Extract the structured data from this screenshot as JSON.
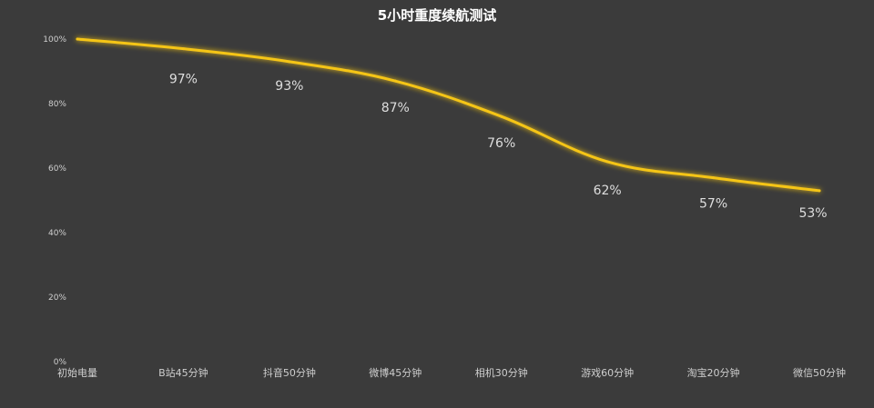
{
  "chart_data": {
    "type": "line",
    "title": "5小时重度续航测试",
    "xlabel": "",
    "ylabel": "",
    "categories": [
      "初始电量",
      "B站45分钟",
      "抖音50分钟",
      "微博45分钟",
      "相机30分钟",
      "游戏60分钟",
      "淘宝20分钟",
      "微信50分钟"
    ],
    "series": [
      {
        "values": [
          100,
          97,
          93,
          87,
          76,
          62,
          57,
          53
        ]
      }
    ],
    "data_labels": [
      "",
      "97%",
      "93%",
      "87%",
      "76%",
      "62%",
      "57%",
      "53%"
    ],
    "yticks": [
      "0%",
      "20%",
      "40%",
      "60%",
      "80%",
      "100%"
    ],
    "ytick_values": [
      0,
      20,
      40,
      60,
      80,
      100
    ],
    "ylim": [
      0,
      100
    ],
    "grid": false,
    "line_color": "#f5c518",
    "background_color": "#3b3b3b"
  }
}
